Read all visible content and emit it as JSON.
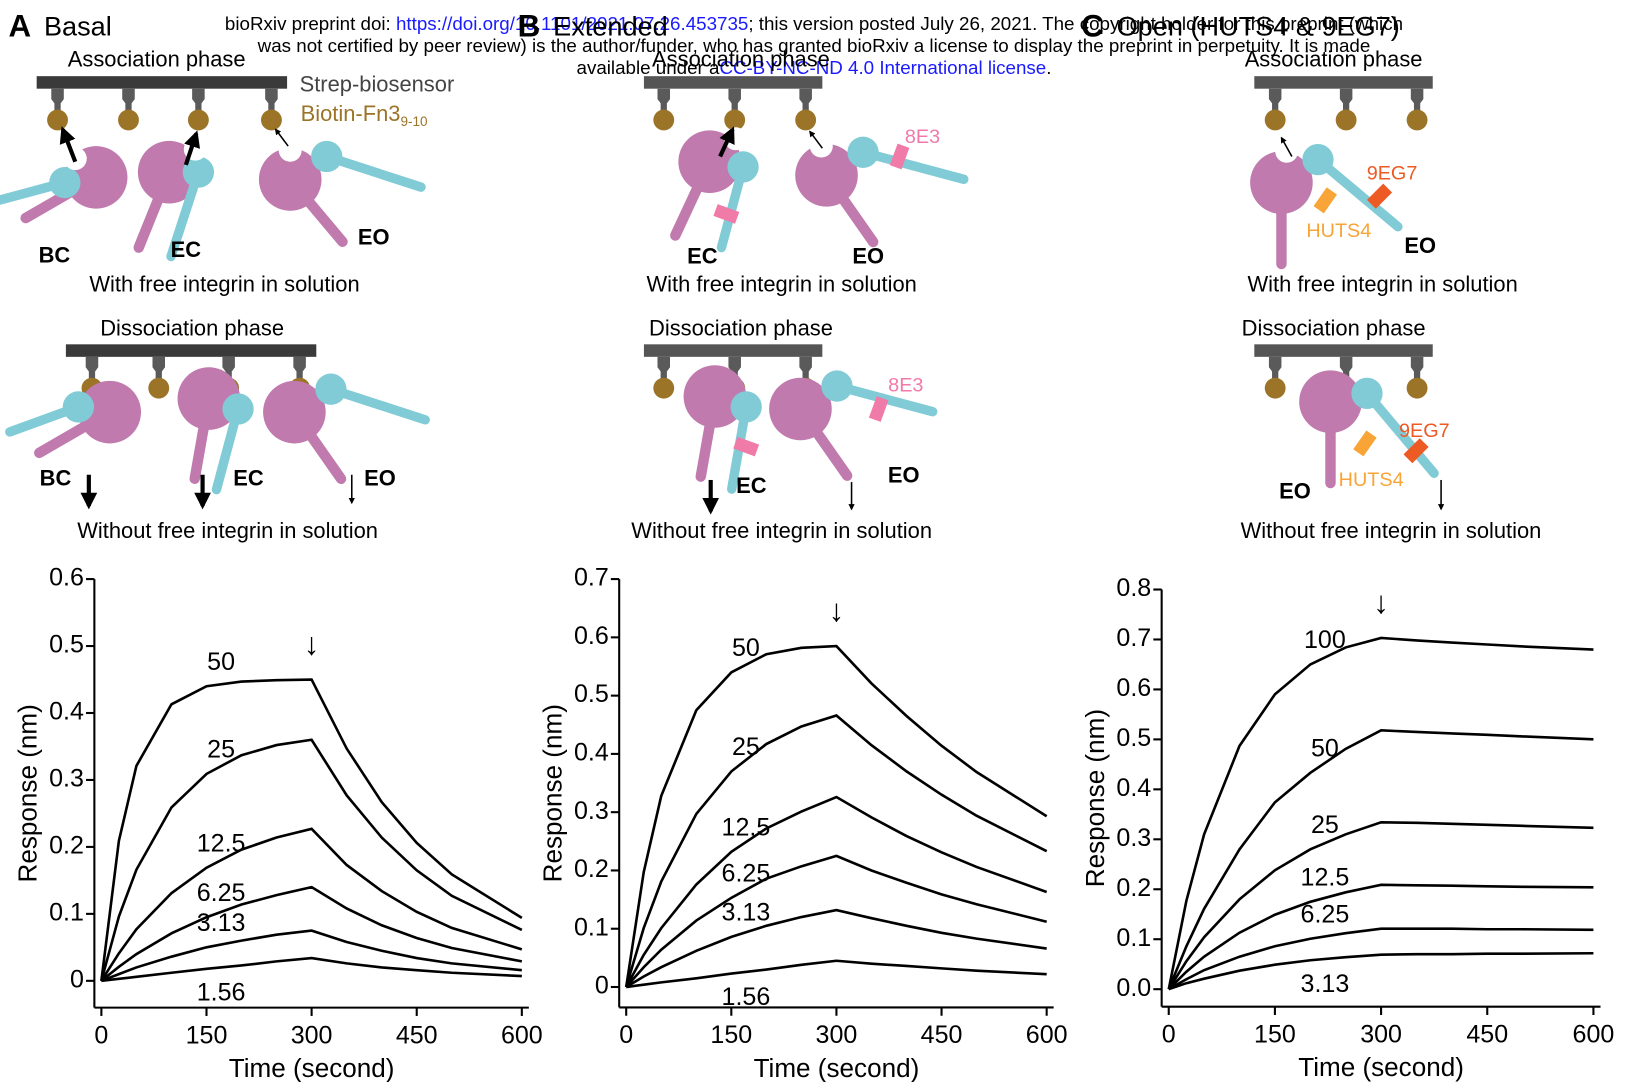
{
  "header": {
    "line1_prefix": "bioRxiv preprint doi: ",
    "doi_link": "https://doi.org/10.1101/2021.07.26.453735",
    "line1_suffix": "; this version posted July 26, 2021. The copyright holder for this preprint (which",
    "line2": "was not certified by peer review) is the author/funder, who has granted bioRxiv a license to display the preprint in perpetuity. It is made",
    "line3_prefix": "available under a",
    "license_link": "CC-BY-NC-ND 4.0 International license",
    "line3_suffix": "."
  },
  "panels": [
    {
      "label": "A",
      "title": "Basal",
      "sensor": "Strep-biosensor",
      "ligand": "Biotin-Fn3",
      "ligand_subscript": "9-10",
      "association": {
        "title": "Association phase",
        "labels": [
          "BC",
          "EC",
          "EO"
        ],
        "condition": "With free integrin in solution"
      },
      "dissociation": {
        "title": "Dissociation phase",
        "labels": [
          "BC",
          "EC",
          "EO"
        ],
        "condition": "Without free integrin in solution"
      }
    },
    {
      "label": "B",
      "title": "Extended",
      "association": {
        "title": "Association phase",
        "labels": [
          "EC",
          "EO"
        ],
        "antibodies": [
          "8E3"
        ],
        "condition": "With free integrin in solution"
      },
      "dissociation": {
        "title": "Dissociation phase",
        "labels": [
          "EC",
          "EO"
        ],
        "antibodies": [
          "8E3"
        ],
        "condition": "Without free integrin in solution"
      }
    },
    {
      "label": "C",
      "title": "Open (HUTS4 & 9EG7)",
      "association": {
        "title": "Association phase",
        "labels": [
          "EO"
        ],
        "antibodies": [
          "9EG7",
          "HUTS4"
        ],
        "condition": "With free integrin in solution"
      },
      "dissociation": {
        "title": "Dissociation phase",
        "labels": [
          "EO"
        ],
        "antibodies": [
          "9EG7",
          "HUTS4"
        ],
        "condition": "Without free integrin in solution"
      }
    }
  ],
  "chart_data": [
    {
      "type": "line",
      "xlabel": "Time (second)",
      "ylabel": "Response (nm)",
      "annotation": "↓",
      "x": [
        0,
        25,
        50,
        100,
        150,
        200,
        250,
        300,
        350,
        400,
        450,
        500,
        600
      ],
      "xlim": [
        -10,
        610
      ],
      "xticks": [
        0,
        150,
        300,
        450,
        600
      ],
      "ylim": [
        -0.04,
        0.6
      ],
      "yticks": [
        0,
        0.1,
        0.2,
        0.3,
        0.4,
        0.5,
        0.6
      ],
      "series": [
        {
          "name": "50",
          "color": "#000000",
          "values": [
            0,
            0.209,
            0.321,
            0.413,
            0.44,
            0.447,
            0.449,
            0.45,
            0.347,
            0.267,
            0.206,
            0.159,
            0.094
          ]
        },
        {
          "name": "25",
          "color": "#000000",
          "values": [
            0,
            0.096,
            0.166,
            0.259,
            0.309,
            0.337,
            0.352,
            0.36,
            0.277,
            0.214,
            0.165,
            0.127,
            0.076
          ]
        },
        {
          "name": "12.5",
          "color": "#000000",
          "values": [
            0,
            0.041,
            0.077,
            0.131,
            0.169,
            0.196,
            0.214,
            0.227,
            0.173,
            0.134,
            0.103,
            0.079,
            0.047
          ]
        },
        {
          "name": "6.25",
          "color": "#000000",
          "values": [
            0,
            0.021,
            0.04,
            0.071,
            0.095,
            0.114,
            0.128,
            0.14,
            0.108,
            0.083,
            0.064,
            0.049,
            0.029
          ]
        },
        {
          "name": "3.13",
          "color": "#000000",
          "values": [
            0,
            0.01,
            0.02,
            0.036,
            0.05,
            0.06,
            0.069,
            0.075,
            0.058,
            0.045,
            0.034,
            0.026,
            0.016
          ]
        },
        {
          "name": "1.56",
          "color": "#000000",
          "values": [
            0,
            0.003,
            0.006,
            0.012,
            0.018,
            0.023,
            0.029,
            0.034,
            0.026,
            0.02,
            0.016,
            0.012,
            0.007
          ]
        }
      ]
    },
    {
      "type": "line",
      "xlabel": "Time (second)",
      "ylabel": "Response (nm)",
      "annotation": "↓",
      "x": [
        0,
        25,
        50,
        100,
        150,
        200,
        250,
        300,
        350,
        400,
        450,
        500,
        600
      ],
      "xlim": [
        -10,
        610
      ],
      "xticks": [
        0,
        150,
        300,
        450,
        600
      ],
      "ylim": [
        -0.035,
        0.7
      ],
      "yticks": [
        0,
        0.1,
        0.2,
        0.3,
        0.4,
        0.5,
        0.6,
        0.7
      ],
      "series": [
        {
          "name": "50",
          "color": "#000000",
          "values": [
            0,
            0.197,
            0.328,
            0.475,
            0.54,
            0.571,
            0.582,
            0.585,
            0.521,
            0.465,
            0.414,
            0.369,
            0.293
          ]
        },
        {
          "name": "25",
          "color": "#000000",
          "values": [
            0,
            0.101,
            0.181,
            0.297,
            0.37,
            0.417,
            0.447,
            0.466,
            0.415,
            0.37,
            0.33,
            0.294,
            0.233
          ]
        },
        {
          "name": "12.5",
          "color": "#000000",
          "values": [
            0,
            0.055,
            0.101,
            0.176,
            0.232,
            0.272,
            0.301,
            0.326,
            0.291,
            0.259,
            0.231,
            0.206,
            0.163
          ]
        },
        {
          "name": "6.25",
          "color": "#000000",
          "values": [
            0,
            0.034,
            0.064,
            0.114,
            0.153,
            0.186,
            0.207,
            0.225,
            0.2,
            0.179,
            0.159,
            0.142,
            0.112
          ]
        },
        {
          "name": "3.13",
          "color": "#000000",
          "values": [
            0,
            0.018,
            0.034,
            0.062,
            0.086,
            0.105,
            0.12,
            0.132,
            0.118,
            0.105,
            0.093,
            0.083,
            0.066
          ]
        },
        {
          "name": "1.56",
          "color": "#000000",
          "values": [
            0,
            0.004,
            0.008,
            0.015,
            0.023,
            0.03,
            0.038,
            0.045,
            0.04,
            0.036,
            0.032,
            0.028,
            0.022
          ]
        }
      ]
    },
    {
      "type": "line",
      "xlabel": "Time (second)",
      "ylabel": "Response (nm)",
      "annotation": "↓",
      "x": [
        0,
        25,
        50,
        100,
        150,
        200,
        250,
        300,
        350,
        400,
        450,
        500,
        600
      ],
      "xlim": [
        -10,
        610
      ],
      "xticks": [
        0,
        150,
        300,
        450,
        600
      ],
      "ylim": [
        -0.035,
        0.8
      ],
      "yticks": [
        {
          "value": 0,
          "label": "0.0"
        },
        0.1,
        0.2,
        0.3,
        0.4,
        0.5,
        0.6,
        0.7,
        0.8
      ],
      "series": [
        {
          "name": "100",
          "color": "#000000",
          "values": [
            0,
            0.177,
            0.31,
            0.487,
            0.59,
            0.65,
            0.684,
            0.703,
            0.698,
            0.694,
            0.69,
            0.686,
            0.68
          ]
        },
        {
          "name": "50",
          "color": "#000000",
          "values": [
            0,
            0.086,
            0.161,
            0.28,
            0.374,
            0.433,
            0.481,
            0.518,
            0.515,
            0.512,
            0.509,
            0.506,
            0.5
          ]
        },
        {
          "name": "25",
          "color": "#000000",
          "values": [
            0,
            0.056,
            0.104,
            0.18,
            0.238,
            0.28,
            0.31,
            0.334,
            0.333,
            0.331,
            0.329,
            0.327,
            0.323
          ]
        },
        {
          "name": "12.5",
          "color": "#000000",
          "values": [
            0,
            0.035,
            0.065,
            0.113,
            0.149,
            0.175,
            0.194,
            0.209,
            0.208,
            0.207,
            0.206,
            0.205,
            0.204
          ]
        },
        {
          "name": "6.25",
          "color": "#000000",
          "values": [
            0,
            0.02,
            0.038,
            0.065,
            0.086,
            0.101,
            0.112,
            0.121,
            0.121,
            0.121,
            0.12,
            0.12,
            0.119
          ]
        },
        {
          "name": "3.13",
          "color": "#000000",
          "values": [
            0,
            0.012,
            0.021,
            0.037,
            0.049,
            0.058,
            0.064,
            0.069,
            0.07,
            0.07,
            0.071,
            0.071,
            0.072
          ]
        }
      ]
    }
  ]
}
